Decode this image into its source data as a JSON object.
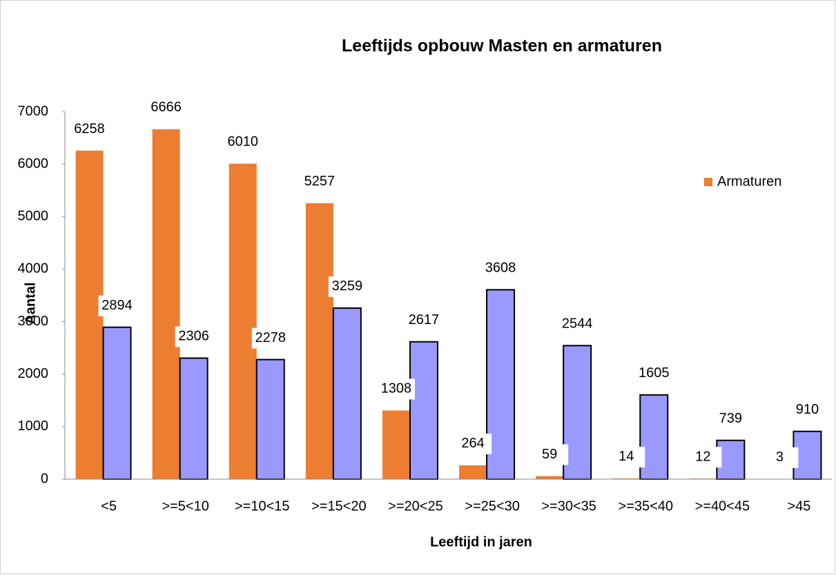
{
  "chart_data": {
    "type": "bar",
    "title": "Leeftijds opbouw Masten en armaturen",
    "x_label": "Leeftijd in jaren",
    "y_label": "Aantal",
    "categories": [
      "<5",
      ">=5<10",
      ">=10<15",
      ">=15<20",
      ">=20<25",
      ">=25<30",
      ">=30<35",
      ">=35<40",
      ">=40<45",
      ">45"
    ],
    "series": [
      {
        "name": "Armaturen",
        "color": "#ed7d31",
        "values": [
          6258,
          6666,
          6010,
          5257,
          1308,
          264,
          59,
          14,
          12,
          3
        ]
      },
      {
        "color": "#9999ff",
        "values": [
          2894,
          2306,
          2278,
          3259,
          2617,
          3608,
          2544,
          1605,
          739,
          910
        ]
      }
    ],
    "ylim": [
      0,
      7000
    ],
    "yticks": [
      0,
      1000,
      2000,
      3000,
      4000,
      5000,
      6000,
      7000
    ],
    "legend": "right"
  }
}
